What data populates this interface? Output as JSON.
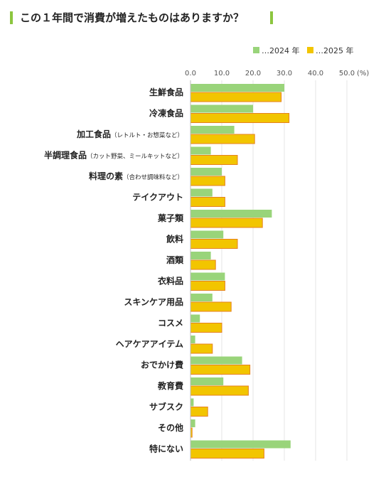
{
  "title": "この１年間で消費が増えたものはありますか？",
  "colors": {
    "accent": "#8cc63f",
    "series_2024": "#99d47a",
    "series_2025": "#f2c500",
    "bar_2025_border": "#e6821e",
    "grid": "#e6e6e6",
    "text": "#222222"
  },
  "chart_data": {
    "type": "bar",
    "orientation": "horizontal",
    "title": "この１年間で消費が増えたものはありますか？",
    "xlabel": "",
    "ylabel": "",
    "unit": "(%)",
    "xlim": [
      0,
      50
    ],
    "xticks": [
      "0.0",
      "10.0",
      "20.0",
      "30.0",
      "40.0",
      "50.0"
    ],
    "grid": true,
    "legend_position": "top-right",
    "categories": [
      {
        "label": "生鮮食品",
        "note": ""
      },
      {
        "label": "冷凍食品",
        "note": ""
      },
      {
        "label": "加工食品",
        "note": "（レトルト・お惣菜など）"
      },
      {
        "label": "半調理食品",
        "note": "（カット野菜、ミールキットなど）"
      },
      {
        "label": "料理の素",
        "note": "（合わせ調味料など）"
      },
      {
        "label": "テイクアウト",
        "note": ""
      },
      {
        "label": "菓子類",
        "note": ""
      },
      {
        "label": "飲料",
        "note": ""
      },
      {
        "label": "酒類",
        "note": ""
      },
      {
        "label": "衣料品",
        "note": ""
      },
      {
        "label": "スキンケア用品",
        "note": ""
      },
      {
        "label": "コスメ",
        "note": ""
      },
      {
        "label": "ヘアケアアイテム",
        "note": ""
      },
      {
        "label": "おでかけ費",
        "note": ""
      },
      {
        "label": "教育費",
        "note": ""
      },
      {
        "label": "サブスク",
        "note": ""
      },
      {
        "label": "その他",
        "note": ""
      },
      {
        "label": "特にない",
        "note": ""
      }
    ],
    "series": [
      {
        "name": "…2024 年",
        "color": "#99d47a",
        "values": [
          30.0,
          20.0,
          14.0,
          6.5,
          10.0,
          7.0,
          26.0,
          10.5,
          6.5,
          11.0,
          7.0,
          3.0,
          1.5,
          16.5,
          10.5,
          1.0,
          1.5,
          32.0
        ]
      },
      {
        "name": "…2025 年",
        "color": "#f2c500",
        "values": [
          29.0,
          31.5,
          20.5,
          15.0,
          11.0,
          11.0,
          23.0,
          15.0,
          8.0,
          11.0,
          13.0,
          10.0,
          7.0,
          19.0,
          18.5,
          5.5,
          0.5,
          23.5
        ]
      }
    ]
  }
}
